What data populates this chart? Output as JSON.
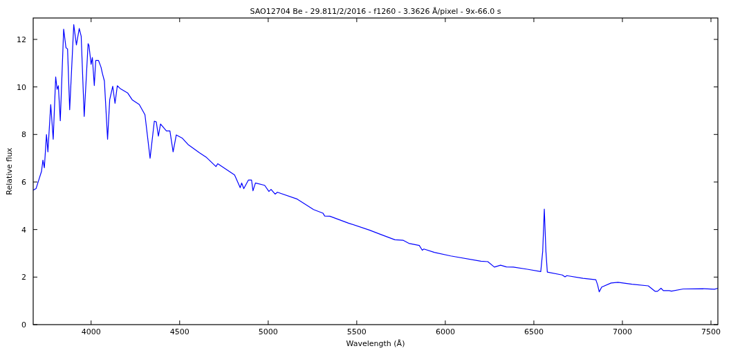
{
  "chart_data": {
    "type": "line",
    "title": "SAO12704 Be - 29.811/2/2016 - f1260 - 3.3626 Å/pixel - 9x-66.0 s",
    "xlabel": "Wavelength (Å)",
    "ylabel": "Relative flux",
    "xlim": [
      3673,
      7539
    ],
    "ylim": [
      0,
      12.9
    ],
    "xticks": [
      4000,
      4500,
      5000,
      5500,
      6000,
      6500,
      7000,
      7500
    ],
    "yticks": [
      0,
      2,
      4,
      6,
      8,
      10,
      12
    ],
    "grid": false,
    "marker": "none",
    "line_style": "solid",
    "series": [
      {
        "color": "#0000ff",
        "x": [
          3673,
          3689,
          3709,
          3720,
          3728,
          3736,
          3748,
          3756,
          3772,
          3786,
          3800,
          3808,
          3815,
          3826,
          3845,
          3858,
          3867,
          3879,
          3902,
          3917,
          3933,
          3944,
          3961,
          3983,
          3988,
          4000,
          4007,
          4018,
          4026,
          4042,
          4056,
          4064,
          4075,
          4093,
          4105,
          4122,
          4135,
          4148,
          4166,
          4206,
          4232,
          4272,
          4304,
          4333,
          4357,
          4368,
          4380,
          4392,
          4425,
          4445,
          4463,
          4481,
          4514,
          4547,
          4612,
          4652,
          4705,
          4715,
          4810,
          4842,
          4850,
          4862,
          4888,
          4906,
          4914,
          4928,
          4980,
          5004,
          5016,
          5039,
          5052,
          5164,
          5256,
          5309,
          5319,
          5348,
          5453,
          5571,
          5637,
          5715,
          5761,
          5794,
          5853,
          5870,
          5879,
          5938,
          6030,
          6201,
          6240,
          6277,
          6312,
          6345,
          6384,
          6463,
          6539,
          6550,
          6559,
          6568,
          6576,
          6660,
          6676,
          6686,
          6778,
          6850,
          6860,
          6869,
          6883,
          6936,
          6975,
          7054,
          7146,
          7185,
          7198,
          7218,
          7231,
          7264,
          7277,
          7343,
          7461,
          7520,
          7539
        ],
        "values": [
          5.66,
          5.72,
          6.19,
          6.45,
          6.92,
          6.6,
          8.0,
          7.27,
          9.26,
          7.8,
          10.42,
          9.9,
          10.05,
          8.58,
          12.43,
          11.65,
          11.6,
          9.04,
          12.62,
          11.77,
          12.46,
          12.13,
          8.76,
          11.82,
          11.74,
          10.95,
          11.24,
          10.06,
          11.11,
          11.11,
          10.83,
          10.56,
          10.25,
          7.8,
          9.46,
          10.03,
          9.31,
          10.05,
          9.92,
          9.75,
          9.46,
          9.26,
          8.83,
          7.0,
          8.56,
          8.53,
          7.93,
          8.44,
          8.15,
          8.15,
          7.27,
          7.98,
          7.85,
          7.58,
          7.23,
          7.03,
          6.65,
          6.77,
          6.3,
          5.76,
          5.96,
          5.72,
          6.08,
          6.08,
          5.63,
          5.96,
          5.86,
          5.6,
          5.69,
          5.49,
          5.57,
          5.28,
          4.84,
          4.69,
          4.57,
          4.56,
          4.27,
          3.98,
          3.79,
          3.57,
          3.55,
          3.42,
          3.33,
          3.13,
          3.18,
          3.04,
          2.89,
          2.67,
          2.65,
          2.42,
          2.5,
          2.43,
          2.42,
          2.33,
          2.23,
          3.09,
          4.86,
          3.09,
          2.21,
          2.09,
          2.01,
          2.06,
          1.95,
          1.89,
          1.67,
          1.38,
          1.58,
          1.75,
          1.78,
          1.7,
          1.63,
          1.4,
          1.4,
          1.53,
          1.43,
          1.43,
          1.41,
          1.5,
          1.51,
          1.49,
          1.53
        ]
      }
    ]
  }
}
